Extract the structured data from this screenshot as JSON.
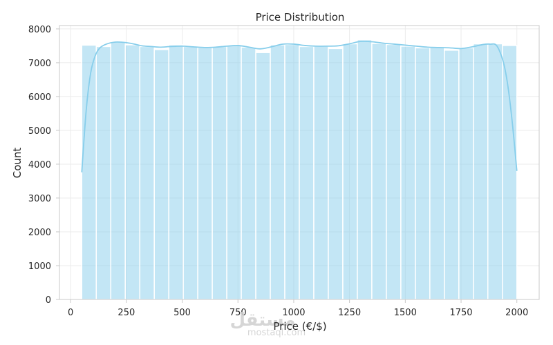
{
  "chart_data": {
    "type": "bar",
    "title": "Price Distribution",
    "xlabel": "Price (€/$)",
    "ylabel": "Count",
    "xlim": [
      -50,
      2100
    ],
    "ylim": [
      0,
      8100
    ],
    "xticks": [
      0,
      250,
      500,
      750,
      1000,
      1250,
      1500,
      1750,
      2000
    ],
    "yticks": [
      0,
      1000,
      2000,
      3000,
      4000,
      5000,
      6000,
      7000,
      8000
    ],
    "grid": true,
    "bin_start": 50,
    "bin_width": 65,
    "bins": [
      {
        "x0": 50,
        "x1": 115,
        "count": 7520
      },
      {
        "x0": 115,
        "x1": 180,
        "count": 7480
      },
      {
        "x0": 180,
        "x1": 245,
        "count": 7620
      },
      {
        "x0": 245,
        "x1": 310,
        "count": 7530
      },
      {
        "x0": 310,
        "x1": 375,
        "count": 7480
      },
      {
        "x0": 375,
        "x1": 440,
        "count": 7390
      },
      {
        "x0": 440,
        "x1": 505,
        "count": 7530
      },
      {
        "x0": 505,
        "x1": 570,
        "count": 7480
      },
      {
        "x0": 570,
        "x1": 635,
        "count": 7450
      },
      {
        "x0": 635,
        "x1": 700,
        "count": 7480
      },
      {
        "x0": 700,
        "x1": 765,
        "count": 7510
      },
      {
        "x0": 765,
        "x1": 830,
        "count": 7460
      },
      {
        "x0": 830,
        "x1": 895,
        "count": 7300
      },
      {
        "x0": 895,
        "x1": 960,
        "count": 7530
      },
      {
        "x0": 960,
        "x1": 1025,
        "count": 7540
      },
      {
        "x0": 1025,
        "x1": 1090,
        "count": 7480
      },
      {
        "x0": 1090,
        "x1": 1155,
        "count": 7490
      },
      {
        "x0": 1155,
        "x1": 1220,
        "count": 7420
      },
      {
        "x0": 1220,
        "x1": 1285,
        "count": 7560
      },
      {
        "x0": 1285,
        "x1": 1350,
        "count": 7680
      },
      {
        "x0": 1350,
        "x1": 1415,
        "count": 7570
      },
      {
        "x0": 1415,
        "x1": 1480,
        "count": 7540
      },
      {
        "x0": 1480,
        "x1": 1545,
        "count": 7490
      },
      {
        "x0": 1545,
        "x1": 1610,
        "count": 7440
      },
      {
        "x0": 1610,
        "x1": 1675,
        "count": 7460
      },
      {
        "x0": 1675,
        "x1": 1740,
        "count": 7370
      },
      {
        "x0": 1740,
        "x1": 1805,
        "count": 7440
      },
      {
        "x0": 1805,
        "x1": 1870,
        "count": 7560
      },
      {
        "x0": 1870,
        "x1": 1935,
        "count": 7560
      },
      {
        "x0": 1935,
        "x1": 2000,
        "count": 7510
      }
    ],
    "kde": {
      "x": [
        50,
        70,
        90,
        110,
        130,
        160,
        200,
        240,
        280,
        320,
        360,
        400,
        450,
        500,
        550,
        600,
        650,
        700,
        750,
        800,
        850,
        900,
        950,
        1000,
        1050,
        1100,
        1150,
        1200,
        1250,
        1300,
        1350,
        1400,
        1450,
        1500,
        1550,
        1600,
        1650,
        1700,
        1750,
        1800,
        1850,
        1880,
        1910,
        1940,
        1960,
        1980,
        2000
      ],
      "y": [
        3760,
        5600,
        6700,
        7200,
        7430,
        7550,
        7610,
        7600,
        7560,
        7500,
        7480,
        7460,
        7480,
        7490,
        7470,
        7450,
        7460,
        7490,
        7510,
        7460,
        7410,
        7470,
        7550,
        7550,
        7510,
        7490,
        7490,
        7500,
        7560,
        7630,
        7620,
        7580,
        7550,
        7520,
        7490,
        7460,
        7450,
        7440,
        7420,
        7470,
        7540,
        7550,
        7500,
        7000,
        6300,
        5200,
        3800
      ]
    },
    "colors": {
      "bar_fill": "#87ceeb",
      "bar_opacity": 0.5,
      "bar_edge": "#ffffff",
      "kde_line": "#87ceeb",
      "grid": "#ebebeb",
      "spine": "#c8c8c8",
      "text": "#262626"
    }
  },
  "watermark": {
    "logo_text": "مستقل",
    "site_text": "mostaql.com"
  }
}
